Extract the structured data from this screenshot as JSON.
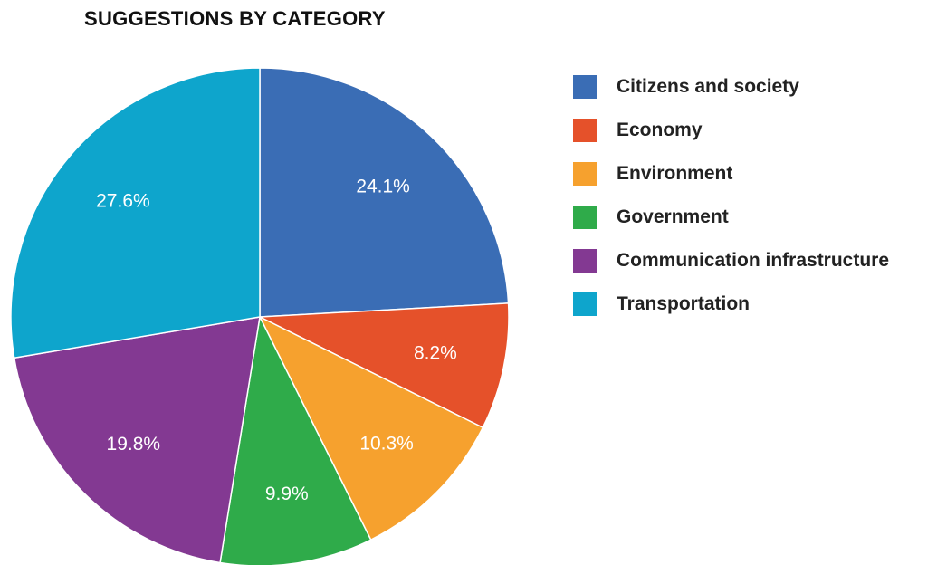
{
  "chart_data": {
    "type": "pie",
    "title": "SUGGESTIONS BY CATEGORY",
    "legend_position": "right",
    "slices": [
      {
        "name": "Citizens and society",
        "value": 24.1,
        "label": "24.1%",
        "color": "#3A6DB5"
      },
      {
        "name": "Economy",
        "value": 8.2,
        "label": "8.2%",
        "color": "#E5512A"
      },
      {
        "name": "Environment",
        "value": 10.3,
        "label": "10.3%",
        "color": "#F6A12E"
      },
      {
        "name": "Government",
        "value": 9.9,
        "label": "9.9%",
        "color": "#2FAB4A"
      },
      {
        "name": "Communication infrastructure",
        "value": 19.8,
        "label": "19.8%",
        "color": "#833992"
      },
      {
        "name": "Transportation",
        "value": 27.6,
        "label": "27.6%",
        "color": "#0EA5CC"
      }
    ]
  }
}
